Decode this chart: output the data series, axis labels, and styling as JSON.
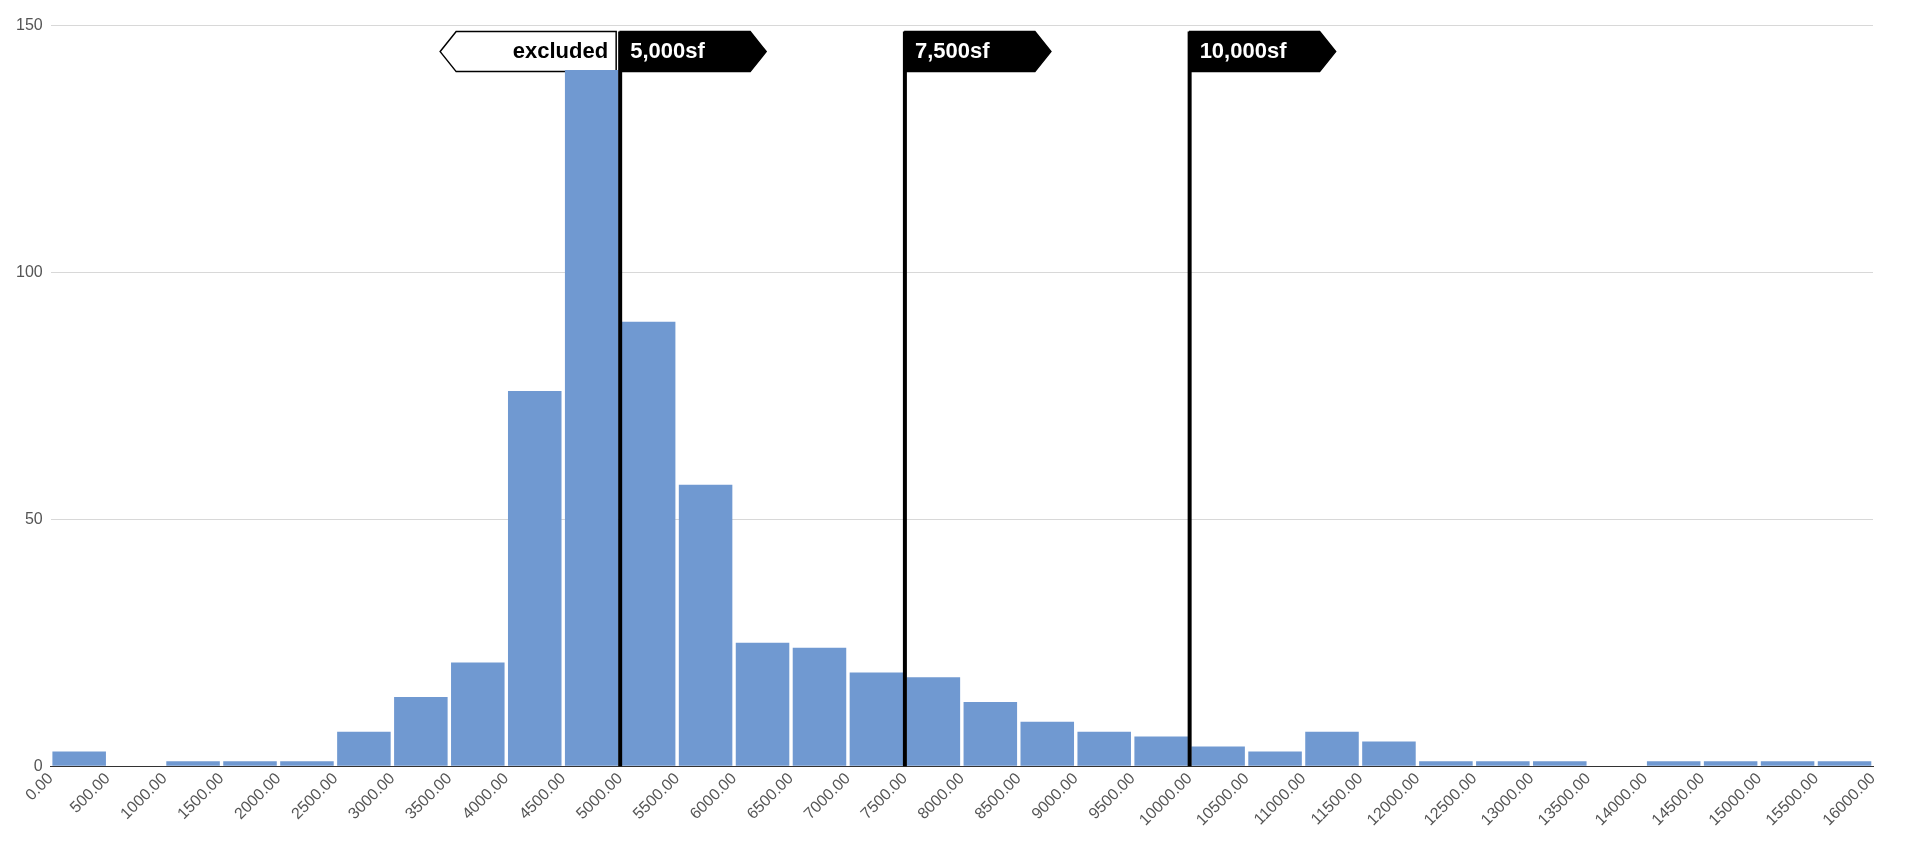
{
  "chart_data": {
    "type": "histogram",
    "bins": [
      0,
      500,
      1000,
      1500,
      2000,
      2500,
      3000,
      3500,
      4000,
      4500,
      5000,
      5500,
      6000,
      6500,
      7000,
      7500,
      8000,
      8500,
      9000,
      9500,
      10000,
      10500,
      11000,
      11500,
      12000,
      12500,
      13000,
      13500,
      14000,
      14500,
      15000,
      15500,
      16000
    ],
    "values": [
      3,
      0,
      1,
      1,
      1,
      7,
      14,
      21,
      76,
      141,
      90,
      57,
      25,
      24,
      19,
      18,
      13,
      9,
      7,
      6,
      4,
      3,
      7,
      5,
      1,
      1,
      1,
      0,
      1,
      1,
      1,
      1
    ],
    "color": "#7099d1",
    "xlim": [
      0,
      16000
    ],
    "xticks": [
      {
        "value": 0,
        "label": "0.00"
      },
      {
        "value": 500,
        "label": "500.00"
      },
      {
        "value": 1000,
        "label": "1000.00"
      },
      {
        "value": 1500,
        "label": "1500.00"
      },
      {
        "value": 2000,
        "label": "2000.00"
      },
      {
        "value": 2500,
        "label": "2500.00"
      },
      {
        "value": 3000,
        "label": "3000.00"
      },
      {
        "value": 3500,
        "label": "3500.00"
      },
      {
        "value": 4000,
        "label": "4000.00"
      },
      {
        "value": 4500,
        "label": "4500.00"
      },
      {
        "value": 5000,
        "label": "5000.00"
      },
      {
        "value": 5500,
        "label": "5500.00"
      },
      {
        "value": 6000,
        "label": "6000.00"
      },
      {
        "value": 6500,
        "label": "6500.00"
      },
      {
        "value": 7000,
        "label": "7000.00"
      },
      {
        "value": 7500,
        "label": "7500.00"
      },
      {
        "value": 8000,
        "label": "8000.00"
      },
      {
        "value": 8500,
        "label": "8500.00"
      },
      {
        "value": 9000,
        "label": "9000.00"
      },
      {
        "value": 9500,
        "label": "9500.00"
      },
      {
        "value": 10000,
        "label": "10000.00"
      },
      {
        "value": 10500,
        "label": "10500.00"
      },
      {
        "value": 11000,
        "label": "11000.00"
      },
      {
        "value": 11500,
        "label": "11500.00"
      },
      {
        "value": 12000,
        "label": "12000.00"
      },
      {
        "value": 12500,
        "label": "12500.00"
      },
      {
        "value": 13000,
        "label": "13000.00"
      },
      {
        "value": 13500,
        "label": "13500.00"
      },
      {
        "value": 14000,
        "label": "14000.00"
      },
      {
        "value": 14500,
        "label": "14500.00"
      },
      {
        "value": 15000,
        "label": "15000.00"
      },
      {
        "value": 15500,
        "label": "15500.00"
      },
      {
        "value": 16000,
        "label": "16000.00"
      }
    ],
    "ylim": [
      0,
      150
    ],
    "yticks": [
      0,
      50,
      100,
      150
    ],
    "grid": "y",
    "ref_lines": [
      {
        "axis": "x",
        "value": 5000,
        "label": "5,000sf",
        "color": "#000000"
      },
      {
        "axis": "x",
        "value": 7500,
        "label": "7,500sf",
        "color": "#000000"
      },
      {
        "axis": "x",
        "value": 10000,
        "label": "10,000sf",
        "color": "#000000"
      }
    ],
    "annotations": [
      "excluded"
    ]
  }
}
